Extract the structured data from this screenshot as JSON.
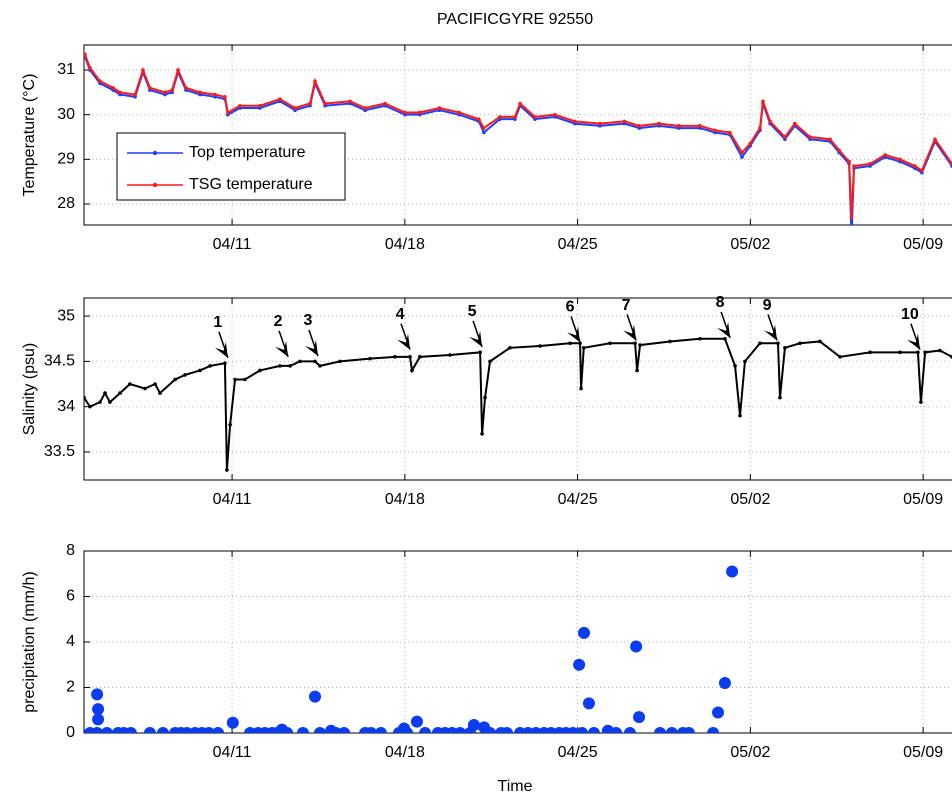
{
  "chart_data": [
    {
      "type": "line",
      "title": "PACIFICGYRE  92550",
      "ylabel": "Temperature (°C)",
      "grid": true,
      "legend": "lower left",
      "xlim": [
        95,
        130.17
      ],
      "ylim": [
        27.53,
        31.56
      ],
      "yticks": [
        28,
        29,
        30,
        31
      ],
      "xticks": [
        {
          "value": 101,
          "label": "04/11"
        },
        {
          "value": 108,
          "label": "04/18"
        },
        {
          "value": 115,
          "label": "04/25"
        },
        {
          "value": 122,
          "label": "05/02"
        },
        {
          "value": 129,
          "label": "05/09"
        }
      ],
      "x": [
        95.04,
        95.24,
        95.65,
        96.18,
        96.46,
        97.07,
        97.39,
        97.67,
        98.28,
        98.57,
        98.81,
        99.13,
        99.7,
        100.31,
        100.71,
        100.83,
        101.32,
        102.13,
        102.94,
        103.55,
        104.16,
        104.36,
        104.77,
        105.78,
        106.39,
        107.2,
        108.0,
        108.6,
        109.4,
        110.2,
        111.0,
        111.2,
        111.85,
        112.46,
        112.67,
        113.27,
        114.08,
        114.89,
        115.9,
        116.9,
        117.5,
        118.3,
        119.1,
        119.96,
        120.57,
        121.17,
        121.66,
        121.99,
        122.39,
        122.51,
        122.8,
        123.4,
        123.8,
        124.42,
        125.23,
        125.6,
        126.0,
        126.1,
        126.2,
        126.85,
        127.46,
        128.06,
        128.67,
        128.95,
        129.48,
        130.17
      ],
      "series": [
        {
          "name": "Top temperature",
          "color": "#1f3fff",
          "values": [
            31.3,
            31.0,
            30.7,
            30.55,
            30.45,
            30.4,
            30.95,
            30.55,
            30.45,
            30.5,
            30.95,
            30.55,
            30.45,
            30.4,
            30.35,
            30.0,
            30.15,
            30.15,
            30.3,
            30.1,
            30.2,
            30.7,
            30.2,
            30.25,
            30.1,
            30.2,
            30.0,
            30.0,
            30.1,
            30.0,
            29.85,
            29.6,
            29.9,
            29.9,
            30.2,
            29.9,
            29.95,
            29.8,
            29.75,
            29.8,
            29.7,
            29.75,
            29.7,
            29.7,
            29.6,
            29.55,
            29.05,
            29.3,
            29.65,
            30.25,
            29.8,
            29.45,
            29.75,
            29.45,
            29.4,
            29.15,
            28.9,
            27.3,
            28.8,
            28.85,
            29.05,
            28.95,
            28.8,
            28.7,
            29.4,
            28.85
          ]
        },
        {
          "name": "TSG temperature",
          "color": "#ff1a1a",
          "values": [
            31.35,
            31.05,
            30.75,
            30.6,
            30.5,
            30.45,
            31.0,
            30.6,
            30.5,
            30.55,
            31.0,
            30.6,
            30.5,
            30.45,
            30.4,
            30.05,
            30.2,
            30.2,
            30.35,
            30.15,
            30.25,
            30.75,
            30.25,
            30.3,
            30.15,
            30.25,
            30.05,
            30.05,
            30.15,
            30.05,
            29.9,
            29.7,
            29.95,
            29.95,
            30.25,
            29.95,
            30.0,
            29.85,
            29.8,
            29.85,
            29.75,
            29.8,
            29.75,
            29.75,
            29.65,
            29.6,
            29.15,
            29.35,
            29.7,
            30.3,
            29.85,
            29.5,
            29.8,
            29.5,
            29.45,
            29.2,
            28.95,
            27.7,
            28.85,
            28.9,
            29.1,
            29.0,
            28.85,
            28.75,
            29.45,
            28.9
          ]
        }
      ]
    },
    {
      "type": "line",
      "ylabel": "Salinity (psu)",
      "grid": true,
      "color": "#000000",
      "xlim": [
        95,
        130.17
      ],
      "ylim": [
        33.19,
        35.2
      ],
      "yticks": [
        33.5,
        34,
        34.5,
        35
      ],
      "xticks": [
        {
          "value": 101,
          "label": "04/11"
        },
        {
          "value": 108,
          "label": "04/18"
        },
        {
          "value": 115,
          "label": "04/25"
        },
        {
          "value": 122,
          "label": "05/02"
        },
        {
          "value": 129,
          "label": "05/09"
        }
      ],
      "x": [
        95.0,
        95.24,
        95.65,
        95.85,
        96.05,
        96.46,
        96.86,
        97.47,
        97.88,
        98.08,
        98.69,
        99.09,
        99.7,
        100.11,
        100.71,
        100.79,
        100.92,
        101.12,
        101.52,
        102.13,
        102.94,
        103.35,
        103.75,
        104.36,
        104.56,
        105.37,
        106.59,
        107.6,
        108.21,
        108.29,
        108.61,
        109.83,
        111.05,
        111.13,
        111.25,
        111.45,
        112.26,
        113.48,
        114.69,
        115.1,
        115.14,
        115.25,
        116.31,
        117.33,
        117.41,
        117.53,
        118.74,
        119.96,
        120.97,
        121.38,
        121.58,
        121.78,
        122.39,
        123.12,
        123.2,
        123.4,
        124.01,
        124.82,
        125.63,
        126.85,
        128.06,
        128.79,
        128.91,
        129.08,
        129.68,
        130.17
      ],
      "values": [
        34.1,
        34.0,
        34.05,
        34.15,
        34.05,
        34.15,
        34.25,
        34.2,
        34.25,
        34.15,
        34.3,
        34.35,
        34.4,
        34.45,
        34.48,
        33.3,
        33.8,
        34.3,
        34.3,
        34.4,
        34.45,
        34.45,
        34.5,
        34.5,
        34.45,
        34.5,
        34.53,
        34.55,
        34.55,
        34.4,
        34.55,
        34.57,
        34.6,
        33.7,
        34.1,
        34.5,
        34.65,
        34.67,
        34.7,
        34.7,
        34.2,
        34.65,
        34.7,
        34.7,
        34.4,
        34.68,
        34.72,
        34.75,
        34.75,
        34.45,
        33.9,
        34.5,
        34.7,
        34.7,
        34.1,
        34.65,
        34.7,
        34.72,
        34.55,
        34.6,
        34.6,
        34.6,
        34.05,
        34.6,
        34.62,
        34.55
      ],
      "annotations": [
        {
          "text": "1",
          "x": 100.83,
          "y": 34.54
        },
        {
          "text": "2",
          "x": 103.27,
          "y": 34.55
        },
        {
          "text": "3",
          "x": 104.48,
          "y": 34.56
        },
        {
          "text": "4",
          "x": 108.21,
          "y": 34.63
        },
        {
          "text": "5",
          "x": 111.13,
          "y": 34.66
        },
        {
          "text": "6",
          "x": 115.1,
          "y": 34.71
        },
        {
          "text": "7",
          "x": 117.37,
          "y": 34.73
        },
        {
          "text": "8",
          "x": 121.18,
          "y": 34.76
        },
        {
          "text": "9",
          "x": 123.08,
          "y": 34.73
        },
        {
          "text": "10",
          "x": 128.87,
          "y": 34.63
        }
      ]
    },
    {
      "type": "scatter",
      "ylabel": "precipitation (mm/h)",
      "xlabel": "Time",
      "grid": true,
      "color": "#0a3cf0",
      "xlim": [
        95,
        130.17
      ],
      "ylim": [
        0,
        8
      ],
      "yticks": [
        0,
        2,
        4,
        6,
        8
      ],
      "xticks": [
        {
          "value": 101,
          "label": "04/11"
        },
        {
          "value": 108,
          "label": "04/18"
        },
        {
          "value": 115,
          "label": "04/25"
        },
        {
          "value": 122,
          "label": "05/02"
        },
        {
          "value": 129,
          "label": "05/09"
        }
      ],
      "x": [
        95.24,
        95.53,
        95.93,
        96.38,
        96.62,
        96.9,
        97.67,
        98.2,
        98.69,
        98.93,
        99.17,
        99.5,
        99.78,
        100.06,
        100.43,
        101.73,
        102.05,
        102.33,
        102.62,
        102.82,
        103.23,
        103.87,
        104.56,
        105.21,
        105.54,
        106.39,
        106.63,
        107.03,
        107.76,
        108.09,
        108.82,
        109.34,
        109.63,
        109.91,
        110.24,
        110.64,
        111.45,
        111.9,
        112.14,
        112.67,
        112.99,
        113.31,
        113.64,
        113.92,
        114.25,
        114.53,
        114.81,
        115.18,
        115.66,
        116.31,
        116.56,
        117.12,
        118.34,
        118.82,
        119.27,
        119.51,
        120.49,
        95.53,
        95.57,
        95.57,
        101.03,
        103.02,
        104.36,
        105.01,
        107.97,
        108.49,
        110.8,
        111.21,
        115.06,
        115.26,
        115.46,
        116.23,
        117.37,
        117.49,
        120.69,
        120.97,
        121.26
      ],
      "values": [
        0,
        0,
        0,
        0,
        0,
        0,
        0,
        0,
        0,
        0,
        0,
        0,
        0,
        0,
        0,
        0,
        0,
        0,
        0,
        0,
        0,
        0,
        0,
        0,
        0,
        0,
        0,
        0,
        0,
        0,
        0,
        0,
        0,
        0,
        0,
        0,
        0,
        0,
        0,
        0,
        0,
        0,
        0,
        0,
        0,
        0,
        0,
        0,
        0,
        0,
        0,
        0,
        0,
        0,
        0,
        0,
        0,
        1.7,
        1.05,
        0.6,
        0.45,
        0.15,
        1.6,
        0.1,
        0.2,
        0.5,
        0.35,
        0.25,
        3.0,
        4.4,
        1.3,
        0.1,
        3.8,
        0.7,
        0.9,
        2.2,
        7.1
      ]
    }
  ]
}
